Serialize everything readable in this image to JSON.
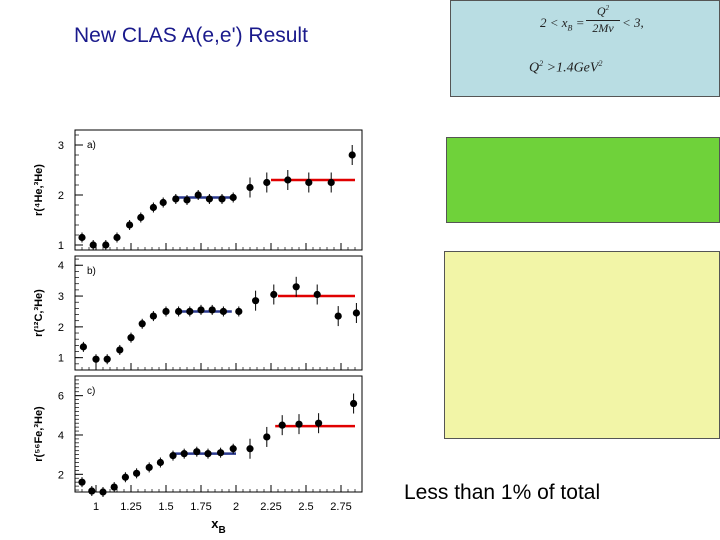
{
  "title": "New CLAS A(e,e') Result",
  "conditions": {
    "line1_left": "2 < x",
    "line1_sub": "B",
    "line1_eq": " = ",
    "frac_num": "Q",
    "frac_num_sup": "2",
    "frac_den": "2Mν",
    "line1_right": " < 3,",
    "line2": "Q",
    "line2_sup": "2",
    "line2_rest": " >1.4GeV",
    "line2_sup2": "2"
  },
  "note": "Less than 1% of total",
  "colors": {
    "blue_box": "#b9dde3",
    "green_box": "#6fd23a",
    "yellow_box": "#f2f5a7",
    "fit_low": "#2b3a8f",
    "fit_high": "#e00000"
  },
  "chart_data": {
    "type": "scatter",
    "x_ticks": [
      "1",
      "1.25",
      "1.5",
      "1.75",
      "2",
      "2.25",
      "2.5",
      "2.75"
    ],
    "xlabel": "x",
    "xlabel_sub": "B",
    "xlim": [
      0.85,
      2.9
    ],
    "panels": [
      {
        "label": "a)",
        "ylabel": "r(⁴He,³He)",
        "ylim": [
          0.9,
          3.3
        ],
        "y_ticks": [
          1,
          2,
          3
        ],
        "points": [
          [
            0.9,
            1.15
          ],
          [
            0.98,
            1.0
          ],
          [
            1.07,
            1.0
          ],
          [
            1.15,
            1.15
          ],
          [
            1.24,
            1.4
          ],
          [
            1.32,
            1.55
          ],
          [
            1.41,
            1.75
          ],
          [
            1.48,
            1.85
          ],
          [
            1.57,
            1.92
          ],
          [
            1.65,
            1.9
          ],
          [
            1.73,
            2.0
          ],
          [
            1.81,
            1.92
          ],
          [
            1.9,
            1.92
          ],
          [
            1.98,
            1.95
          ],
          [
            2.1,
            2.15
          ],
          [
            2.22,
            2.25
          ],
          [
            2.37,
            2.3
          ],
          [
            2.52,
            2.25
          ],
          [
            2.68,
            2.25
          ],
          [
            2.83,
            2.8
          ]
        ],
        "fit_low": {
          "x": [
            1.55,
            2.0
          ],
          "y": 1.95
        },
        "fit_high": {
          "x": [
            2.25,
            2.85
          ],
          "y": 2.3
        }
      },
      {
        "label": "b)",
        "ylabel": "r(¹²C,³He)",
        "ylim": [
          0.6,
          4.3
        ],
        "y_ticks": [
          1,
          2,
          3,
          4
        ],
        "points": [
          [
            0.91,
            1.35
          ],
          [
            1.0,
            0.95
          ],
          [
            1.08,
            0.95
          ],
          [
            1.17,
            1.25
          ],
          [
            1.25,
            1.65
          ],
          [
            1.33,
            2.1
          ],
          [
            1.41,
            2.35
          ],
          [
            1.5,
            2.5
          ],
          [
            1.59,
            2.5
          ],
          [
            1.67,
            2.5
          ],
          [
            1.75,
            2.55
          ],
          [
            1.83,
            2.55
          ],
          [
            1.91,
            2.5
          ],
          [
            2.02,
            2.5
          ],
          [
            2.14,
            2.85
          ],
          [
            2.27,
            3.05
          ],
          [
            2.43,
            3.3
          ],
          [
            2.58,
            3.05
          ],
          [
            2.73,
            2.35
          ],
          [
            2.86,
            2.45
          ]
        ],
        "fit_low": {
          "x": [
            1.57,
            1.97
          ],
          "y": 2.5
        },
        "fit_high": {
          "x": [
            2.3,
            2.85
          ],
          "y": 3.0
        }
      },
      {
        "label": "c)",
        "ylabel": "r(⁵⁶Fe,³He)",
        "ylim": [
          1.1,
          7.0
        ],
        "y_ticks": [
          2,
          4,
          6
        ],
        "points": [
          [
            0.9,
            1.6
          ],
          [
            0.97,
            1.15
          ],
          [
            1.05,
            1.1
          ],
          [
            1.13,
            1.35
          ],
          [
            1.21,
            1.85
          ],
          [
            1.29,
            2.05
          ],
          [
            1.38,
            2.35
          ],
          [
            1.46,
            2.6
          ],
          [
            1.55,
            2.95
          ],
          [
            1.63,
            3.05
          ],
          [
            1.72,
            3.15
          ],
          [
            1.8,
            3.05
          ],
          [
            1.89,
            3.1
          ],
          [
            1.98,
            3.3
          ],
          [
            2.1,
            3.3
          ],
          [
            2.22,
            3.9
          ],
          [
            2.33,
            4.5
          ],
          [
            2.45,
            4.55
          ],
          [
            2.59,
            4.6
          ],
          [
            2.84,
            5.6
          ]
        ],
        "fit_low": {
          "x": [
            1.55,
            2.0
          ],
          "y": 3.05
        },
        "fit_high": {
          "x": [
            2.28,
            2.85
          ],
          "y": 4.45
        }
      }
    ]
  }
}
